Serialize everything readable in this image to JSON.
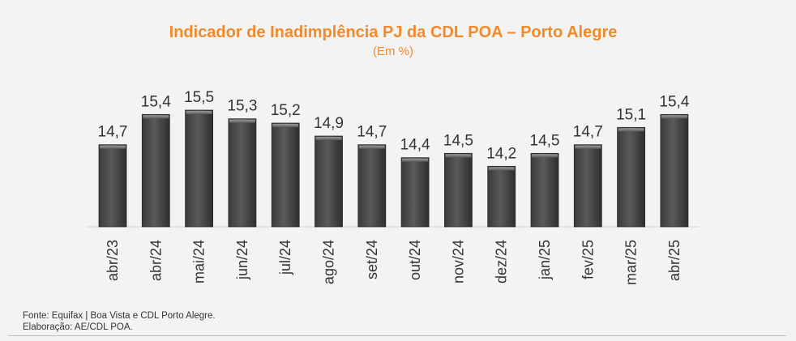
{
  "chart_data": {
    "type": "bar",
    "title": "Indicador de Inadimplência PJ da CDL POA – Porto Alegre",
    "subtitle": "(Em %)",
    "categories": [
      "abr/23",
      "abr/24",
      "mai/24",
      "jun/24",
      "jul/24",
      "ago/24",
      "set/24",
      "out/24",
      "nov/24",
      "dez/24",
      "jan/25",
      "fev/25",
      "mar/25",
      "abr/25"
    ],
    "values": [
      14.7,
      15.4,
      15.5,
      15.3,
      15.2,
      14.9,
      14.7,
      14.4,
      14.5,
      14.2,
      14.5,
      14.7,
      15.1,
      15.4
    ],
    "labels": [
      "14,7",
      "15,4",
      "15,5",
      "15,3",
      "15,2",
      "14,9",
      "14,7",
      "14,4",
      "14,5",
      "14,2",
      "14,5",
      "14,7",
      "15,1",
      "15,4"
    ],
    "ylim": [
      12.8,
      15.5
    ],
    "bar_color": "#4b4b4b",
    "grid": false,
    "legend": "none"
  },
  "footer": {
    "source": "Fonte: Equifax | Boa Vista e CDL Porto Alegre.",
    "credit": "Elaboração: AE/CDL POA."
  }
}
